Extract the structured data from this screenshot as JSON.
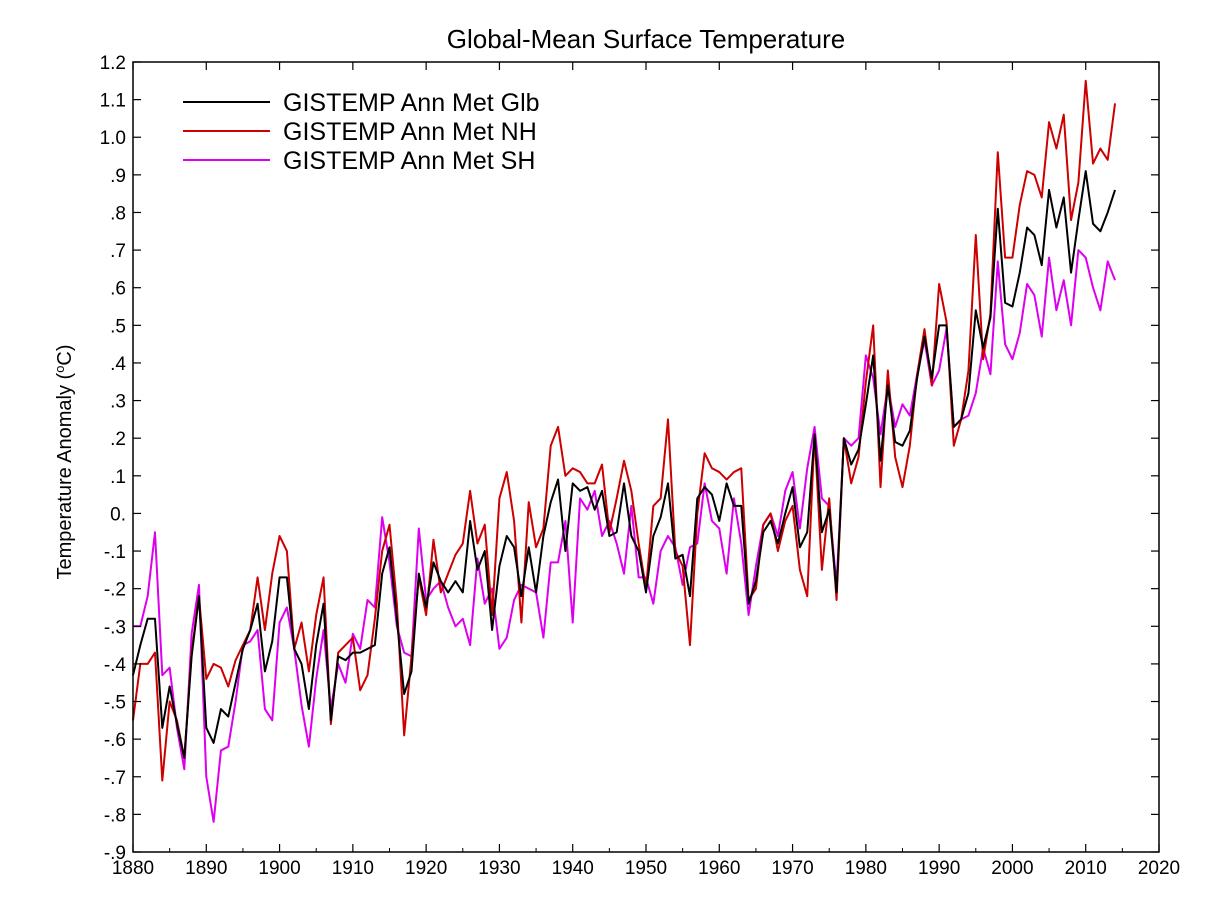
{
  "chart_data": {
    "type": "line",
    "title": "Global-Mean Surface Temperature",
    "xlabel": "",
    "ylabel": "Temperature Anomaly (",
    "ylabel_sup": "o",
    "ylabel_unit": "C)",
    "xlim": [
      1880,
      2020
    ],
    "ylim": [
      -0.9,
      1.2
    ],
    "legend_position": "top-left",
    "grid": false,
    "x_ticks": [
      1880,
      1890,
      1900,
      1910,
      1920,
      1930,
      1940,
      1950,
      1960,
      1970,
      1980,
      1990,
      2000,
      2010,
      2020
    ],
    "x_tick_labels": [
      "1880",
      "1890",
      "1900",
      "1910",
      "1920",
      "1930",
      "1940",
      "1950",
      "1960",
      "1970",
      "1980",
      "1990",
      "2000",
      "2010",
      "2020"
    ],
    "y_ticks": [
      1.2,
      1.1,
      1.0,
      0.9,
      0.8,
      0.7,
      0.6,
      0.5,
      0.4,
      0.3,
      0.2,
      0.1,
      0.0,
      -0.1,
      -0.2,
      -0.3,
      -0.4,
      -0.5,
      -0.6,
      -0.7,
      -0.8,
      -0.9
    ],
    "y_tick_labels": [
      "1.2",
      "1.1",
      "1.0",
      ".9",
      ".8",
      ".7",
      ".6",
      ".5",
      ".4",
      ".3",
      ".2",
      ".1",
      "0.",
      "-.1",
      "-.2",
      "-.3",
      "-.4",
      "-.5",
      "-.6",
      "-.7",
      "-.8",
      "-.9"
    ],
    "x_start": 1880,
    "series": [
      {
        "name": "GISTEMP Ann Met Glb",
        "color": "#000000",
        "values": [
          -0.43,
          -0.35,
          -0.28,
          -0.28,
          -0.57,
          -0.46,
          -0.56,
          -0.65,
          -0.38,
          -0.22,
          -0.57,
          -0.61,
          -0.52,
          -0.54,
          -0.45,
          -0.36,
          -0.31,
          -0.24,
          -0.42,
          -0.34,
          -0.17,
          -0.17,
          -0.36,
          -0.4,
          -0.52,
          -0.35,
          -0.24,
          -0.55,
          -0.38,
          -0.39,
          -0.37,
          -0.37,
          -0.36,
          -0.35,
          -0.16,
          -0.09,
          -0.28,
          -0.48,
          -0.42,
          -0.16,
          -0.25,
          -0.13,
          -0.18,
          -0.21,
          -0.18,
          -0.21,
          -0.02,
          -0.15,
          -0.1,
          -0.31,
          -0.14,
          -0.06,
          -0.09,
          -0.22,
          -0.09,
          -0.21,
          -0.06,
          0.03,
          0.09,
          -0.1,
          0.08,
          0.06,
          0.07,
          0.01,
          0.06,
          -0.06,
          -0.05,
          0.08,
          -0.06,
          -0.1,
          -0.21,
          -0.06,
          -0.01,
          0.08,
          -0.12,
          -0.11,
          -0.22,
          0.04,
          0.07,
          0.05,
          -0.02,
          0.08,
          0.02,
          0.02,
          -0.24,
          -0.18,
          -0.05,
          -0.02,
          -0.08,
          0.0,
          0.07,
          -0.09,
          -0.05,
          0.21,
          -0.05,
          0.01,
          -0.21,
          0.2,
          0.13,
          0.17,
          0.29,
          0.42,
          0.14,
          0.34,
          0.19,
          0.18,
          0.22,
          0.36,
          0.47,
          0.36,
          0.5,
          0.5,
          0.23,
          0.25,
          0.32,
          0.54,
          0.44,
          0.52,
          0.81,
          0.56,
          0.55,
          0.64,
          0.76,
          0.74,
          0.66,
          0.86,
          0.76,
          0.84,
          0.64,
          0.78,
          0.91,
          0.77,
          0.75,
          0.8,
          0.86
        ]
      },
      {
        "name": "GISTEMP Ann Met NH",
        "color": "#cc0000",
        "values": [
          -0.55,
          -0.4,
          -0.4,
          -0.37,
          -0.71,
          -0.5,
          -0.55,
          -0.65,
          -0.37,
          -0.22,
          -0.44,
          -0.4,
          -0.41,
          -0.46,
          -0.39,
          -0.35,
          -0.31,
          -0.17,
          -0.31,
          -0.16,
          -0.06,
          -0.1,
          -0.36,
          -0.29,
          -0.42,
          -0.27,
          -0.17,
          -0.56,
          -0.37,
          -0.35,
          -0.33,
          -0.47,
          -0.43,
          -0.28,
          -0.1,
          -0.03,
          -0.24,
          -0.59,
          -0.38,
          -0.17,
          -0.27,
          -0.07,
          -0.21,
          -0.16,
          -0.11,
          -0.08,
          0.06,
          -0.08,
          -0.03,
          -0.27,
          0.04,
          0.11,
          -0.02,
          -0.29,
          0.03,
          -0.09,
          -0.04,
          0.18,
          0.23,
          0.1,
          0.12,
          0.11,
          0.08,
          0.08,
          0.13,
          -0.05,
          0.04,
          0.14,
          0.06,
          -0.08,
          -0.2,
          0.02,
          0.04,
          0.25,
          -0.1,
          -0.14,
          -0.35,
          0.0,
          0.16,
          0.12,
          0.11,
          0.09,
          0.11,
          0.12,
          -0.23,
          -0.2,
          -0.03,
          0.0,
          -0.1,
          -0.02,
          0.02,
          -0.15,
          -0.22,
          0.21,
          -0.15,
          0.04,
          -0.23,
          0.2,
          0.08,
          0.15,
          0.35,
          0.5,
          0.07,
          0.38,
          0.15,
          0.07,
          0.18,
          0.37,
          0.49,
          0.34,
          0.61,
          0.51,
          0.18,
          0.25,
          0.38,
          0.74,
          0.41,
          0.53,
          0.96,
          0.68,
          0.68,
          0.82,
          0.91,
          0.9,
          0.84,
          1.04,
          0.97,
          1.06,
          0.78,
          0.88,
          1.15,
          0.93,
          0.97,
          0.94,
          1.09
        ]
      },
      {
        "name": "GISTEMP Ann Met SH",
        "color": "#dd00ee",
        "values": [
          -0.3,
          -0.3,
          -0.22,
          -0.05,
          -0.43,
          -0.41,
          -0.57,
          -0.68,
          -0.32,
          -0.19,
          -0.7,
          -0.82,
          -0.63,
          -0.62,
          -0.5,
          -0.35,
          -0.34,
          -0.31,
          -0.52,
          -0.55,
          -0.29,
          -0.25,
          -0.36,
          -0.51,
          -0.62,
          -0.44,
          -0.31,
          -0.52,
          -0.4,
          -0.45,
          -0.32,
          -0.36,
          -0.23,
          -0.25,
          -0.01,
          -0.13,
          -0.3,
          -0.37,
          -0.38,
          -0.04,
          -0.23,
          -0.2,
          -0.18,
          -0.25,
          -0.3,
          -0.28,
          -0.35,
          -0.12,
          -0.24,
          -0.2,
          -0.36,
          -0.33,
          -0.23,
          -0.19,
          -0.2,
          -0.21,
          -0.33,
          -0.13,
          -0.13,
          -0.02,
          -0.29,
          0.04,
          0.01,
          0.06,
          -0.06,
          -0.02,
          -0.08,
          -0.16,
          0.02,
          -0.17,
          -0.17,
          -0.24,
          -0.1,
          -0.06,
          -0.09,
          -0.19,
          -0.09,
          -0.08,
          0.08,
          -0.02,
          -0.04,
          -0.16,
          0.04,
          -0.08,
          -0.27,
          -0.14,
          -0.03,
          0.0,
          -0.06,
          0.06,
          0.11,
          -0.04,
          0.12,
          0.23,
          0.04,
          0.02,
          -0.19,
          0.2,
          0.18,
          0.2,
          0.42,
          0.36,
          0.21,
          0.34,
          0.23,
          0.29,
          0.26,
          0.37,
          0.46,
          0.34,
          0.38,
          0.49,
          0.23,
          0.25,
          0.26,
          0.32,
          0.44,
          0.37,
          0.67,
          0.45,
          0.41,
          0.48,
          0.61,
          0.58,
          0.47,
          0.68,
          0.54,
          0.62,
          0.5,
          0.7,
          0.68,
          0.6,
          0.54,
          0.67,
          0.62
        ]
      }
    ]
  }
}
